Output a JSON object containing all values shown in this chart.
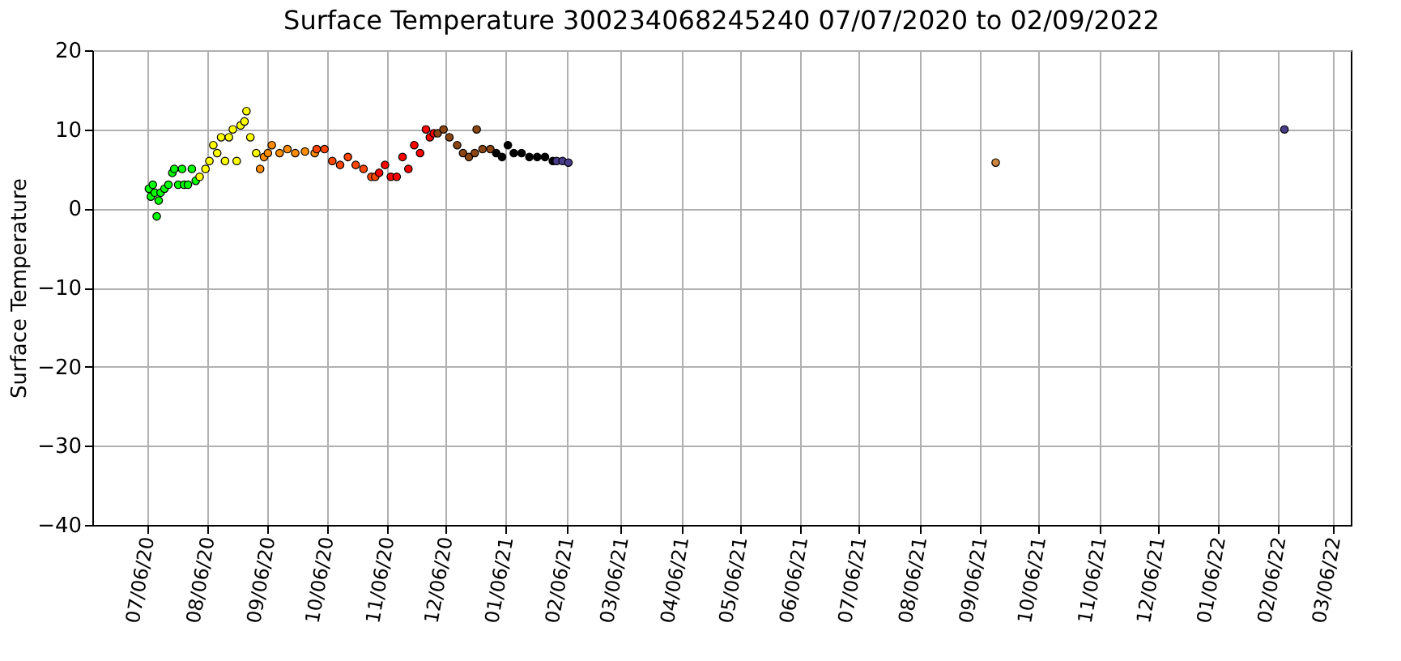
{
  "chart_data": {
    "type": "scatter",
    "title": "Surface Temperature 300234068245240  07/07/2020 to 02/09/2022",
    "ylabel": "Surface Temperature",
    "series": [
      {
        "color": "#00ff00",
        "x": [
          "2020-07-07",
          "2020-07-08",
          "2020-07-09",
          "2020-07-10",
          "2020-07-11",
          "2020-07-12",
          "2020-07-13",
          "2020-07-15",
          "2020-07-17",
          "2020-07-19",
          "2020-07-20",
          "2020-07-22",
          "2020-07-24",
          "2020-07-25",
          "2020-07-27",
          "2020-07-29",
          "2020-07-31"
        ],
        "values": [
          2.5,
          1.5,
          3.0,
          2.0,
          -1.0,
          1.0,
          2.0,
          2.5,
          3.0,
          4.5,
          5.0,
          3.0,
          5.0,
          3.0,
          3.0,
          5.0,
          3.5
        ]
      },
      {
        "color": "#ffff00",
        "x": [
          "2020-08-02",
          "2020-08-05",
          "2020-08-07",
          "2020-08-09",
          "2020-08-11",
          "2020-08-13",
          "2020-08-15",
          "2020-08-17",
          "2020-08-19",
          "2020-08-21",
          "2020-08-23",
          "2020-08-25",
          "2020-08-26",
          "2020-08-28",
          "2020-08-31"
        ],
        "values": [
          4.0,
          5.0,
          6.0,
          8.0,
          7.0,
          9.0,
          6.0,
          9.0,
          10.0,
          6.0,
          10.5,
          11.0,
          12.3,
          9.0,
          7.0
        ]
      },
      {
        "color": "#ff8c00",
        "x": [
          "2020-09-02",
          "2020-09-04",
          "2020-09-06",
          "2020-09-08",
          "2020-09-12",
          "2020-09-16",
          "2020-09-20",
          "2020-09-25",
          "2020-09-30"
        ],
        "values": [
          5.0,
          6.5,
          7.0,
          8.0,
          7.0,
          7.5,
          7.0,
          7.2,
          7.0
        ]
      },
      {
        "color": "#ff4500",
        "x": [
          "2020-10-01",
          "2020-10-05",
          "2020-10-09",
          "2020-10-13",
          "2020-10-17",
          "2020-10-21",
          "2020-10-25",
          "2020-10-29",
          "2020-10-31"
        ],
        "values": [
          7.5,
          7.5,
          6.0,
          5.5,
          6.5,
          5.5,
          5.0,
          4.0,
          4.0
        ]
      },
      {
        "color": "#ff0000",
        "x": [
          "2020-11-02",
          "2020-11-05",
          "2020-11-08",
          "2020-11-11",
          "2020-11-14",
          "2020-11-17",
          "2020-11-20",
          "2020-11-23",
          "2020-11-26",
          "2020-11-28",
          "2020-11-30"
        ],
        "values": [
          4.5,
          5.5,
          4.0,
          4.0,
          6.5,
          5.0,
          8.0,
          7.0,
          10.0,
          9.0,
          9.5
        ]
      },
      {
        "color": "#8b4513",
        "x": [
          "2020-12-02",
          "2020-12-05",
          "2020-12-08",
          "2020-12-12",
          "2020-12-15",
          "2020-12-18",
          "2020-12-21",
          "2020-12-22",
          "2020-12-25",
          "2020-12-29"
        ],
        "values": [
          9.5,
          10.0,
          9.0,
          8.0,
          7.0,
          6.5,
          7.0,
          10.0,
          7.5,
          7.5
        ]
      },
      {
        "color": "#000000",
        "x": [
          "2021-01-01",
          "2021-01-04",
          "2021-01-07",
          "2021-01-10",
          "2021-01-14",
          "2021-01-18",
          "2021-01-22",
          "2021-01-26",
          "2021-01-30"
        ],
        "values": [
          7.0,
          6.5,
          8.0,
          7.0,
          7.0,
          6.5,
          6.5,
          6.5,
          6.0
        ]
      },
      {
        "color": "#483d8b",
        "x": [
          "2021-02-01",
          "2021-02-04",
          "2021-02-07"
        ],
        "values": [
          6.0,
          6.0,
          5.8
        ]
      },
      {
        "color": "#cd853f",
        "x": [
          "2021-09-14"
        ],
        "values": [
          5.8
        ]
      },
      {
        "color": "#483d8b",
        "x": [
          "2022-02-09"
        ],
        "values": [
          10.0
        ]
      }
    ],
    "xlim": [
      "2020-06-08",
      "2022-03-15"
    ],
    "xticks": [
      {
        "value": "2020-07-06",
        "label": "07/06/20"
      },
      {
        "value": "2020-08-06",
        "label": "08/06/20"
      },
      {
        "value": "2020-09-06",
        "label": "09/06/20"
      },
      {
        "value": "2020-10-06",
        "label": "10/06/20"
      },
      {
        "value": "2020-11-06",
        "label": "11/06/20"
      },
      {
        "value": "2020-12-06",
        "label": "12/06/20"
      },
      {
        "value": "2021-01-06",
        "label": "01/06/21"
      },
      {
        "value": "2021-02-06",
        "label": "02/06/21"
      },
      {
        "value": "2021-03-06",
        "label": "03/06/21"
      },
      {
        "value": "2021-04-06",
        "label": "04/06/21"
      },
      {
        "value": "2021-05-06",
        "label": "05/06/21"
      },
      {
        "value": "2021-06-06",
        "label": "06/06/21"
      },
      {
        "value": "2021-07-06",
        "label": "07/06/21"
      },
      {
        "value": "2021-08-06",
        "label": "08/06/21"
      },
      {
        "value": "2021-09-06",
        "label": "09/06/21"
      },
      {
        "value": "2021-10-06",
        "label": "10/06/21"
      },
      {
        "value": "2021-11-06",
        "label": "11/06/21"
      },
      {
        "value": "2021-12-06",
        "label": "12/06/21"
      },
      {
        "value": "2022-01-06",
        "label": "01/06/22"
      },
      {
        "value": "2022-02-06",
        "label": "02/06/22"
      },
      {
        "value": "2022-03-06",
        "label": "03/06/22"
      }
    ],
    "ylim": [
      -40,
      20
    ],
    "yticks": [
      -40,
      -30,
      -20,
      -10,
      0,
      10,
      20
    ],
    "grid": true,
    "marker": "circle"
  }
}
